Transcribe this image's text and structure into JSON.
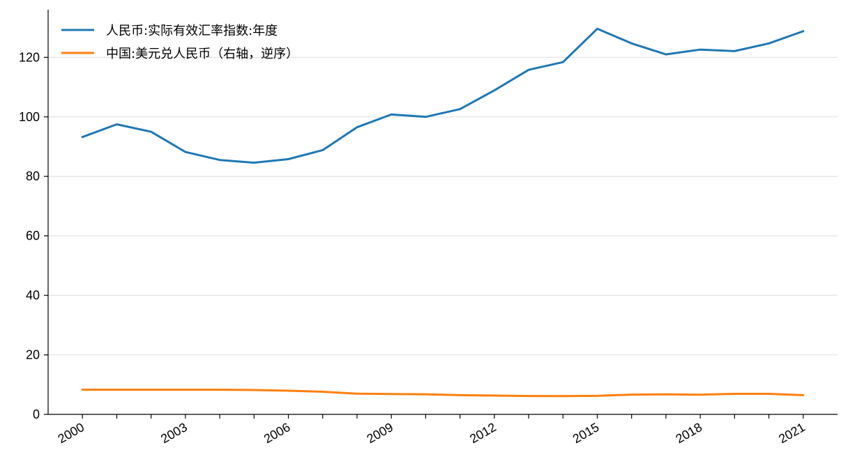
{
  "chart_data": {
    "type": "line",
    "title": "",
    "xlabel": "",
    "ylabel": "",
    "x": [
      2000,
      2001,
      2002,
      2003,
      2004,
      2005,
      2006,
      2007,
      2008,
      2009,
      2010,
      2011,
      2012,
      2013,
      2014,
      2015,
      2016,
      2017,
      2018,
      2019,
      2020,
      2021
    ],
    "x_tick_labels": [
      "2000",
      "2003",
      "2006",
      "2009",
      "2012",
      "2015",
      "2018",
      "2021"
    ],
    "x_tick_values": [
      2000,
      2003,
      2006,
      2009,
      2012,
      2015,
      2018,
      2021
    ],
    "xlim": [
      1999,
      2022
    ],
    "ylim": [
      0,
      136
    ],
    "y_ticks": [
      0,
      20,
      40,
      60,
      80,
      100,
      120
    ],
    "y_tick_labels": [
      "0",
      "20",
      "40",
      "60",
      "80",
      "100",
      "120"
    ],
    "grid": "horizontal",
    "legend_position": "top-left",
    "series": [
      {
        "name": "人民币:实际有效汇率指数:年度",
        "color": "#1f77b4",
        "values": [
          93.2,
          97.5,
          95.0,
          88.2,
          85.5,
          84.6,
          85.8,
          88.8,
          96.5,
          100.8,
          100.0,
          102.6,
          108.9,
          115.8,
          118.4,
          129.6,
          124.7,
          121.0,
          122.6,
          122.1,
          124.7,
          128.8
        ]
      },
      {
        "name": "中国:美元兑人民币（右轴，逆序）",
        "color": "#ff7f0e",
        "values": [
          8.28,
          8.28,
          8.28,
          8.28,
          8.28,
          8.19,
          7.97,
          7.6,
          6.95,
          6.83,
          6.77,
          6.46,
          6.31,
          6.19,
          6.14,
          6.23,
          6.64,
          6.75,
          6.62,
          6.9,
          6.9,
          6.45
        ]
      }
    ]
  }
}
